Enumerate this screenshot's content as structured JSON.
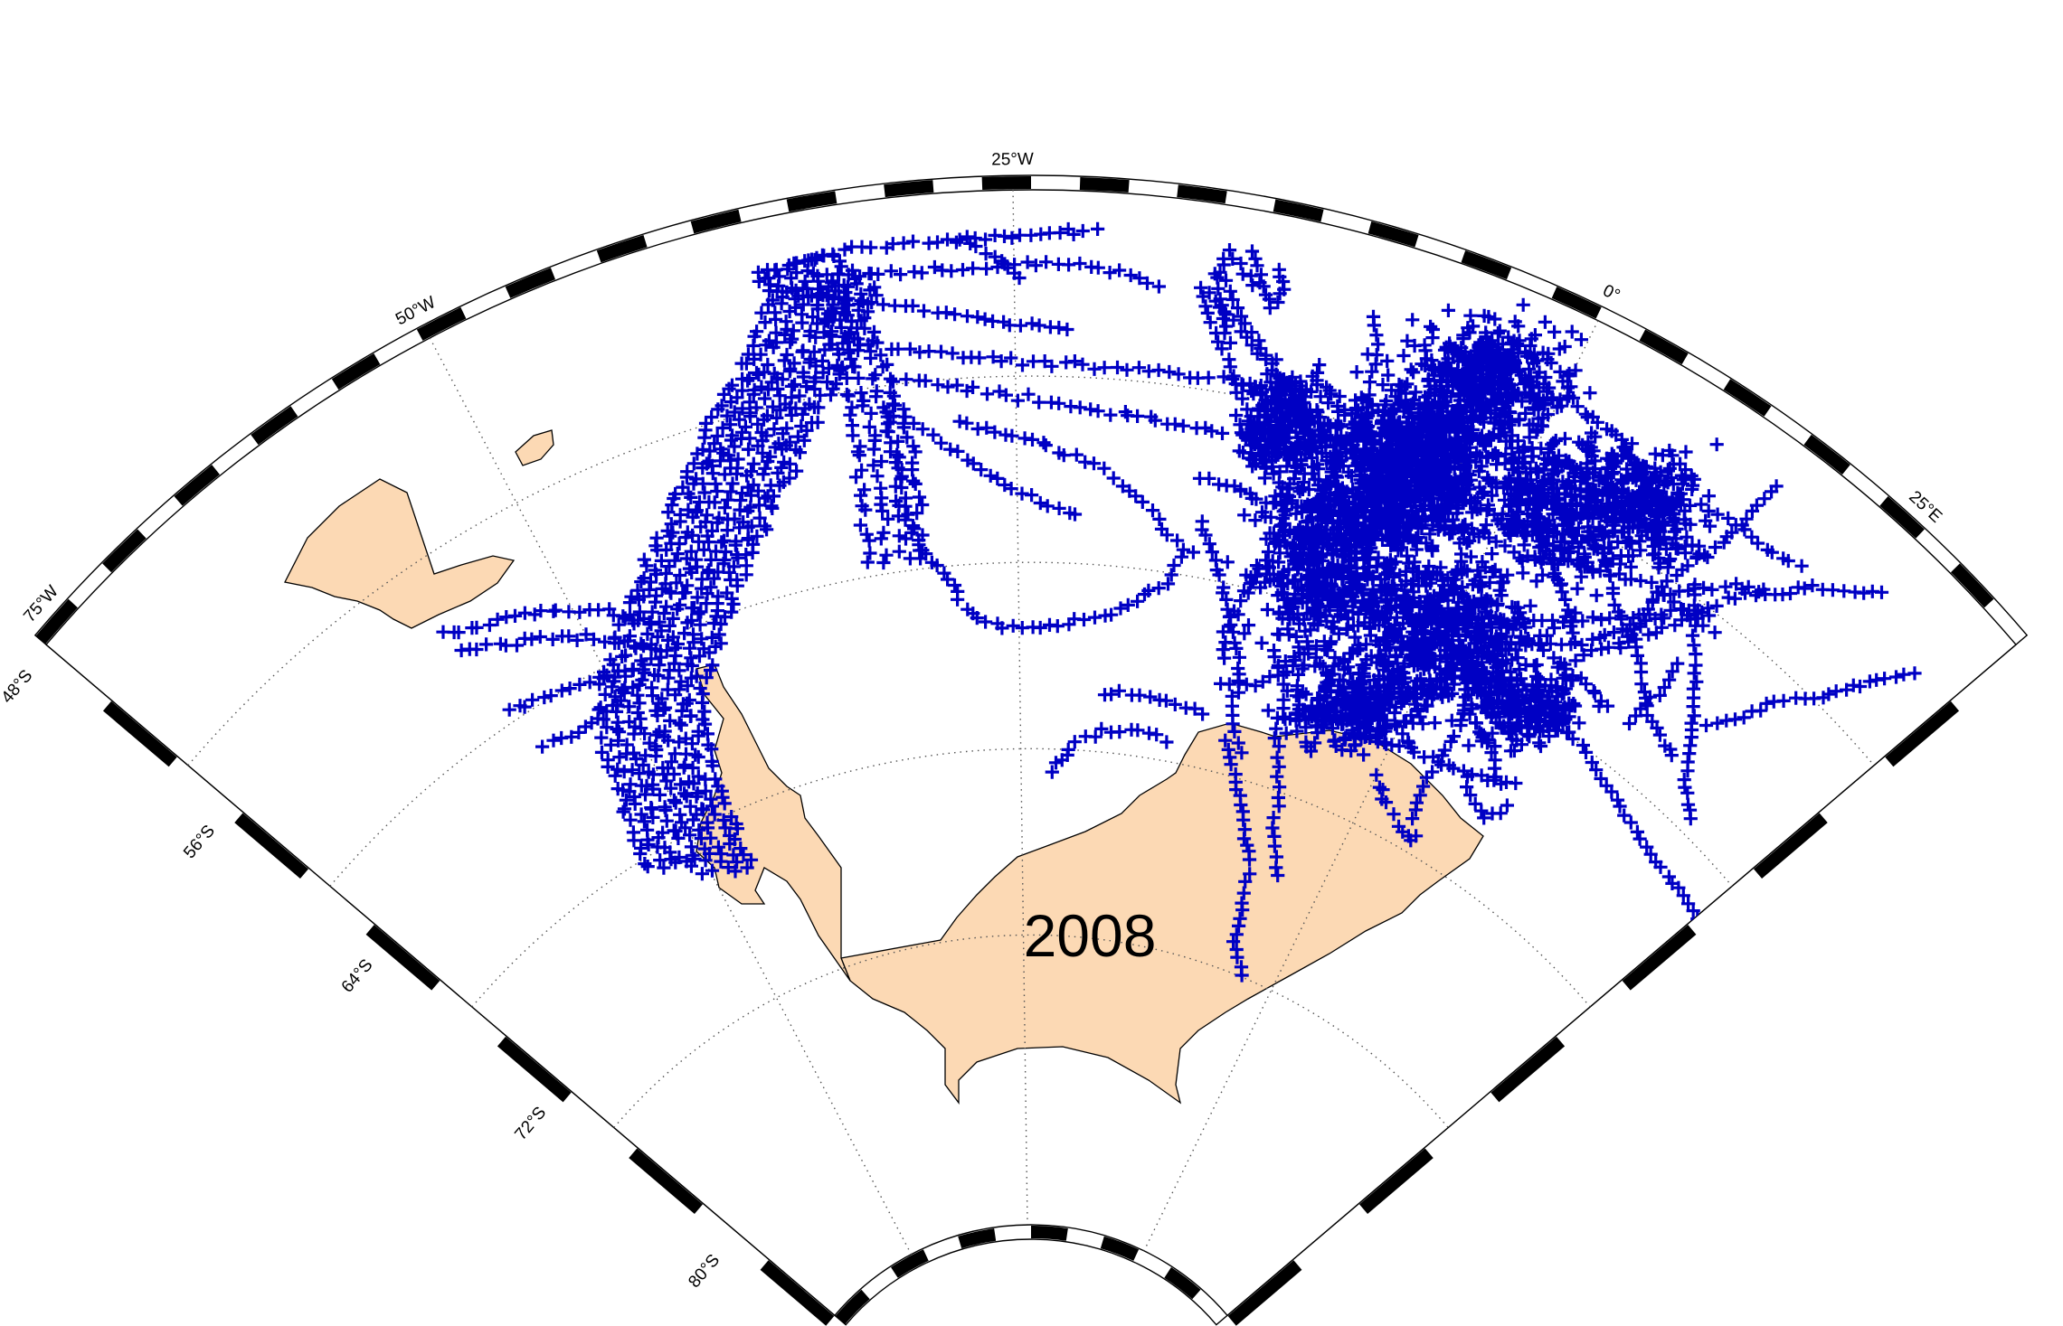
{
  "title": "2008",
  "colors": {
    "land": "#fcd9b4",
    "track": "#0000c4",
    "frame_dark": "#000000",
    "frame_light": "#ffffff",
    "graticule": "#555555"
  },
  "map": {
    "projection": "polar stereographic sector (Weddell Sea)",
    "lon_range": [
      -80,
      35
    ],
    "lat_range": [
      -84,
      -47
    ],
    "longitude_labels": [
      "75°W",
      "50°W",
      "25°W",
      "0°",
      "25°E"
    ],
    "latitude_labels": [
      "48°S",
      "56°S",
      "64°S",
      "72°S",
      "80°S"
    ],
    "marker": "+",
    "marker_name": "float-position-marker"
  }
}
